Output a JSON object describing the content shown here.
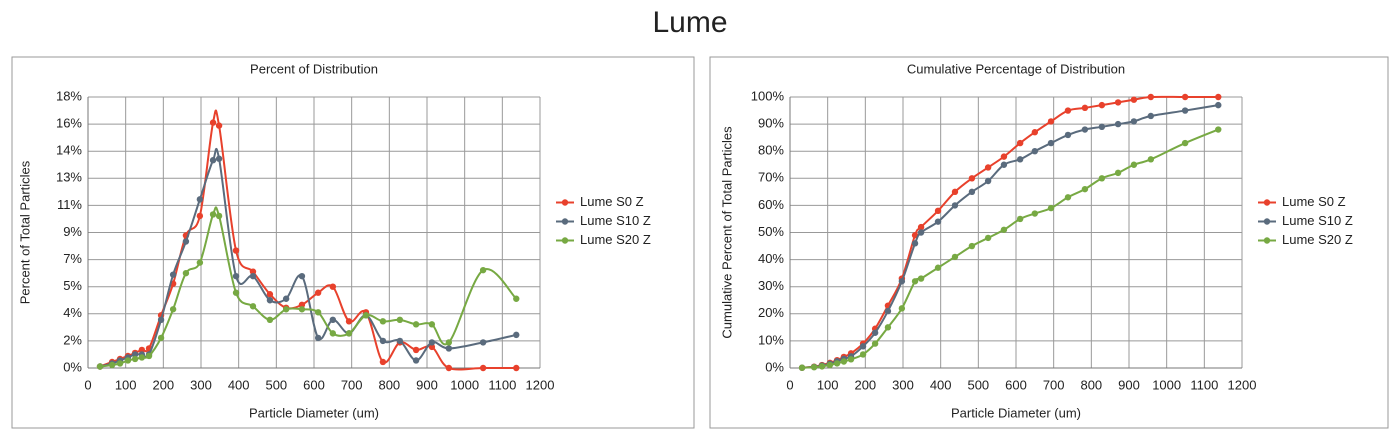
{
  "title": "Lume",
  "chart_data": [
    {
      "type": "line",
      "title": "Percent of Distribution",
      "x_label": "Particle Diameter (um)",
      "y_label": "Percent of Total Particles",
      "x": [
        32,
        64,
        85,
        106,
        125,
        143,
        162,
        194,
        226,
        260,
        297,
        332,
        348,
        393,
        438,
        483,
        526,
        568,
        611,
        650,
        693,
        738,
        783,
        828,
        871,
        913,
        958,
        1049,
        1137
      ],
      "series": [
        {
          "name": "Lume S0 Z",
          "color": "#e8412c",
          "values": [
            0.1,
            0.4,
            0.6,
            0.8,
            1.0,
            1.2,
            1.3,
            3.5,
            5.6,
            8.8,
            10.1,
            16.3,
            16.1,
            7.8,
            6.4,
            4.9,
            4.0,
            4.2,
            5.0,
            5.4,
            3.1,
            3.7,
            0.4,
            1.7,
            1.2,
            1.4,
            0.0,
            0.0,
            0.0
          ]
        },
        {
          "name": "Lume S10 Z",
          "color": "#5a6b7d",
          "values": [
            0.1,
            0.3,
            0.5,
            0.7,
            0.9,
            0.9,
            0.9,
            3.2,
            6.2,
            8.4,
            11.2,
            13.8,
            13.9,
            6.1,
            6.1,
            4.5,
            4.6,
            6.1,
            2.0,
            3.2,
            2.3,
            3.5,
            1.8,
            1.8,
            0.5,
            1.7,
            1.3,
            1.7,
            2.2
          ]
        },
        {
          "name": "Lume S20 Z",
          "color": "#77a943",
          "values": [
            0.1,
            0.2,
            0.3,
            0.5,
            0.6,
            0.7,
            0.8,
            2.0,
            3.9,
            6.3,
            7.0,
            10.2,
            10.1,
            5.0,
            4.1,
            3.2,
            3.9,
            3.9,
            3.7,
            2.3,
            2.3,
            3.5,
            3.1,
            3.2,
            2.9,
            2.9,
            1.7,
            6.5,
            4.6
          ]
        }
      ],
      "xlim": [
        0,
        1200
      ],
      "xticks": [
        0,
        100,
        200,
        300,
        400,
        500,
        600,
        700,
        800,
        900,
        1000,
        1100,
        1200
      ],
      "ylim": [
        0,
        18
      ],
      "yticks": [
        {
          "value": 0,
          "label": "0%"
        },
        {
          "value": 1.8,
          "label": "2%"
        },
        {
          "value": 3.6,
          "label": "4%"
        },
        {
          "value": 5.4,
          "label": "5%"
        },
        {
          "value": 7.2,
          "label": "7%"
        },
        {
          "value": 9,
          "label": "9%"
        },
        {
          "value": 10.8,
          "label": "11%"
        },
        {
          "value": 12.6,
          "label": "13%"
        },
        {
          "value": 14.4,
          "label": "14%"
        },
        {
          "value": 16.2,
          "label": "16%"
        },
        {
          "value": 18,
          "label": "18%"
        }
      ],
      "grid": true,
      "legend": "right",
      "smooth": true
    },
    {
      "type": "line",
      "title": "Cumulative Percentage of Distribution",
      "x_label": "Particle Diameter (um)",
      "y_label": "Cumulative Percent of Total Particles",
      "x": [
        32,
        64,
        85,
        106,
        125,
        143,
        162,
        194,
        226,
        260,
        297,
        332,
        348,
        393,
        438,
        483,
        526,
        568,
        611,
        650,
        693,
        738,
        783,
        828,
        871,
        913,
        958,
        1049,
        1137
      ],
      "series": [
        {
          "name": "Lume S0 Z",
          "color": "#e8412c",
          "values": [
            0.1,
            0.5,
            1.1,
            1.9,
            2.9,
            4.1,
            5.4,
            9,
            14.5,
            23,
            33,
            49,
            52,
            58,
            65,
            70,
            74,
            78,
            83,
            87,
            91,
            95,
            96,
            97,
            98,
            99,
            100,
            100,
            100
          ]
        },
        {
          "name": "Lume S10 Z",
          "color": "#5a6b7d",
          "values": [
            0.1,
            0.4,
            0.9,
            1.6,
            2.5,
            3.4,
            4.3,
            8,
            13,
            21,
            32,
            46,
            50,
            54,
            60,
            65,
            69,
            75,
            77,
            80,
            83,
            86,
            88,
            89,
            90,
            91,
            93,
            95,
            97
          ]
        },
        {
          "name": "Lume S20 Z",
          "color": "#77a943",
          "values": [
            0.1,
            0.3,
            0.6,
            1.1,
            1.7,
            2.4,
            3.2,
            5,
            9,
            15,
            22,
            32,
            33,
            37,
            41,
            45,
            48,
            51,
            55,
            57,
            59,
            63,
            66,
            70,
            72,
            75,
            77,
            83,
            88
          ]
        }
      ],
      "xlim": [
        0,
        1200
      ],
      "xticks": [
        0,
        100,
        200,
        300,
        400,
        500,
        600,
        700,
        800,
        900,
        1000,
        1100,
        1200
      ],
      "ylim": [
        0,
        100
      ],
      "yticks": [
        {
          "value": 0,
          "label": "0%"
        },
        {
          "value": 10,
          "label": "10%"
        },
        {
          "value": 20,
          "label": "20%"
        },
        {
          "value": 30,
          "label": "30%"
        },
        {
          "value": 40,
          "label": "40%"
        },
        {
          "value": 50,
          "label": "50%"
        },
        {
          "value": 60,
          "label": "60%"
        },
        {
          "value": 70,
          "label": "70%"
        },
        {
          "value": 80,
          "label": "80%"
        },
        {
          "value": 90,
          "label": "90%"
        },
        {
          "value": 100,
          "label": "100%"
        }
      ],
      "grid": true,
      "legend": "right",
      "smooth": true
    }
  ]
}
